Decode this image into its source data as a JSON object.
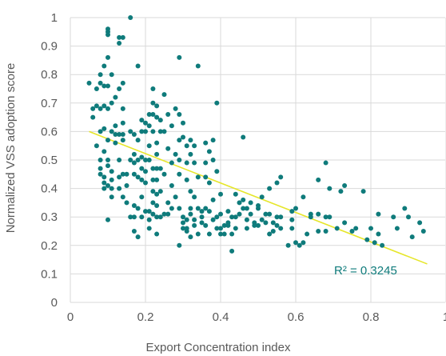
{
  "chart_data": {
    "type": "scatter",
    "xlabel": "Export Concentration index",
    "ylabel": "Normalized VSS adoption score",
    "xlim": [
      0,
      1
    ],
    "ylim": [
      0,
      1
    ],
    "xticks": [
      0,
      0.2,
      0.4,
      0.6,
      0.8,
      1
    ],
    "yticks": [
      0,
      0.1,
      0.2,
      0.3,
      0.4,
      0.5,
      0.6,
      0.7,
      0.8,
      0.9,
      1
    ],
    "xtick_labels": [
      "0",
      "0.2",
      "0.4",
      "0.6",
      "0.8",
      "1"
    ],
    "ytick_labels": [
      "0",
      "0.1",
      "0.2",
      "0.3",
      "0.4",
      "0.5",
      "0.6",
      "0.7",
      "0.8",
      "0.9",
      "1"
    ],
    "grid": "both",
    "marker_color": "#0f7b7b",
    "trendline": {
      "type": "linear",
      "x": [
        0.05,
        0.95
      ],
      "y": [
        0.6,
        0.135
      ],
      "color": "#e6e62a",
      "r2_label": "R² = 0.3245",
      "r2_color": "#0f7b7b"
    },
    "series": [
      {
        "points": [
          [
            0.05,
            0.77
          ],
          [
            0.06,
            0.68
          ],
          [
            0.06,
            0.65
          ],
          [
            0.07,
            0.55
          ],
          [
            0.07,
            0.69
          ],
          [
            0.07,
            0.75
          ],
          [
            0.08,
            0.8
          ],
          [
            0.08,
            0.77
          ],
          [
            0.08,
            0.68
          ],
          [
            0.08,
            0.6
          ],
          [
            0.08,
            0.5
          ],
          [
            0.08,
            0.47
          ],
          [
            0.08,
            0.45
          ],
          [
            0.09,
            0.83
          ],
          [
            0.09,
            0.76
          ],
          [
            0.09,
            0.69
          ],
          [
            0.09,
            0.61
          ],
          [
            0.09,
            0.53
          ],
          [
            0.09,
            0.44
          ],
          [
            0.09,
            0.42
          ],
          [
            0.09,
            0.4
          ],
          [
            0.1,
            0.96
          ],
          [
            0.1,
            0.95
          ],
          [
            0.1,
            0.94
          ],
          [
            0.1,
            0.86
          ],
          [
            0.1,
            0.76
          ],
          [
            0.1,
            0.68
          ],
          [
            0.1,
            0.57
          ],
          [
            0.1,
            0.5
          ],
          [
            0.1,
            0.48
          ],
          [
            0.1,
            0.41
          ],
          [
            0.1,
            0.29
          ],
          [
            0.11,
            0.8
          ],
          [
            0.11,
            0.7
          ],
          [
            0.11,
            0.6
          ],
          [
            0.11,
            0.46
          ],
          [
            0.11,
            0.43
          ],
          [
            0.11,
            0.4
          ],
          [
            0.11,
            0.37
          ],
          [
            0.12,
            0.72
          ],
          [
            0.12,
            0.62
          ],
          [
            0.12,
            0.59
          ],
          [
            0.12,
            0.56
          ],
          [
            0.13,
            0.93
          ],
          [
            0.13,
            0.91
          ],
          [
            0.13,
            0.75
          ],
          [
            0.13,
            0.59
          ],
          [
            0.13,
            0.5
          ],
          [
            0.13,
            0.44
          ],
          [
            0.13,
            0.4
          ],
          [
            0.14,
            0.93
          ],
          [
            0.14,
            0.77
          ],
          [
            0.14,
            0.68
          ],
          [
            0.14,
            0.63
          ],
          [
            0.14,
            0.59
          ],
          [
            0.14,
            0.57
          ],
          [
            0.14,
            0.45
          ],
          [
            0.14,
            0.37
          ],
          [
            0.15,
            0.45
          ],
          [
            0.15,
            0.41
          ],
          [
            0.15,
            0.35
          ],
          [
            0.16,
            1.0
          ],
          [
            0.16,
            0.6
          ],
          [
            0.16,
            0.5
          ],
          [
            0.16,
            0.3
          ],
          [
            0.17,
            0.59
          ],
          [
            0.17,
            0.52
          ],
          [
            0.17,
            0.49
          ],
          [
            0.17,
            0.45
          ],
          [
            0.17,
            0.34
          ],
          [
            0.17,
            0.3
          ],
          [
            0.17,
            0.25
          ],
          [
            0.18,
            0.83
          ],
          [
            0.18,
            0.57
          ],
          [
            0.18,
            0.5
          ],
          [
            0.18,
            0.44
          ],
          [
            0.18,
            0.33
          ],
          [
            0.18,
            0.23
          ],
          [
            0.19,
            0.64
          ],
          [
            0.19,
            0.6
          ],
          [
            0.19,
            0.51
          ],
          [
            0.19,
            0.47
          ],
          [
            0.19,
            0.43
          ],
          [
            0.19,
            0.37
          ],
          [
            0.19,
            0.3
          ],
          [
            0.2,
            0.63
          ],
          [
            0.2,
            0.6
          ],
          [
            0.2,
            0.5
          ],
          [
            0.2,
            0.46
          ],
          [
            0.2,
            0.42
          ],
          [
            0.2,
            0.32
          ],
          [
            0.21,
            0.66
          ],
          [
            0.21,
            0.62
          ],
          [
            0.21,
            0.55
          ],
          [
            0.21,
            0.5
          ],
          [
            0.21,
            0.32
          ],
          [
            0.21,
            0.29
          ],
          [
            0.21,
            0.26
          ],
          [
            0.22,
            0.75
          ],
          [
            0.22,
            0.7
          ],
          [
            0.22,
            0.66
          ],
          [
            0.22,
            0.6
          ],
          [
            0.22,
            0.47
          ],
          [
            0.22,
            0.43
          ],
          [
            0.22,
            0.39
          ],
          [
            0.22,
            0.35
          ],
          [
            0.22,
            0.31
          ],
          [
            0.23,
            0.69
          ],
          [
            0.23,
            0.65
          ],
          [
            0.23,
            0.56
          ],
          [
            0.23,
            0.52
          ],
          [
            0.23,
            0.47
          ],
          [
            0.23,
            0.43
          ],
          [
            0.23,
            0.38
          ],
          [
            0.23,
            0.34
          ],
          [
            0.23,
            0.3
          ],
          [
            0.23,
            0.24
          ],
          [
            0.24,
            0.64
          ],
          [
            0.24,
            0.6
          ],
          [
            0.24,
            0.47
          ],
          [
            0.24,
            0.39
          ],
          [
            0.24,
            0.3
          ],
          [
            0.25,
            0.73
          ],
          [
            0.25,
            0.6
          ],
          [
            0.25,
            0.45
          ],
          [
            0.25,
            0.31
          ],
          [
            0.26,
            0.66
          ],
          [
            0.26,
            0.54
          ],
          [
            0.26,
            0.35
          ],
          [
            0.26,
            0.31
          ],
          [
            0.27,
            0.62
          ],
          [
            0.27,
            0.49
          ],
          [
            0.27,
            0.41
          ],
          [
            0.27,
            0.33
          ],
          [
            0.28,
            0.68
          ],
          [
            0.28,
            0.52
          ],
          [
            0.28,
            0.37
          ],
          [
            0.29,
            0.86
          ],
          [
            0.29,
            0.66
          ],
          [
            0.29,
            0.57
          ],
          [
            0.29,
            0.5
          ],
          [
            0.29,
            0.45
          ],
          [
            0.29,
            0.33
          ],
          [
            0.29,
            0.2
          ],
          [
            0.3,
            0.63
          ],
          [
            0.3,
            0.58
          ],
          [
            0.3,
            0.3
          ],
          [
            0.3,
            0.28
          ],
          [
            0.3,
            0.26
          ],
          [
            0.31,
            0.55
          ],
          [
            0.31,
            0.49
          ],
          [
            0.31,
            0.43
          ],
          [
            0.31,
            0.29
          ],
          [
            0.31,
            0.26
          ],
          [
            0.31,
            0.25
          ],
          [
            0.32,
            0.57
          ],
          [
            0.32,
            0.52
          ],
          [
            0.32,
            0.39
          ],
          [
            0.32,
            0.33
          ],
          [
            0.32,
            0.31
          ],
          [
            0.32,
            0.23
          ],
          [
            0.33,
            0.55
          ],
          [
            0.33,
            0.49
          ],
          [
            0.33,
            0.37
          ],
          [
            0.33,
            0.29
          ],
          [
            0.33,
            0.27
          ],
          [
            0.34,
            0.83
          ],
          [
            0.34,
            0.44
          ],
          [
            0.34,
            0.33
          ],
          [
            0.34,
            0.24
          ],
          [
            0.35,
            0.32
          ],
          [
            0.35,
            0.3
          ],
          [
            0.35,
            0.28
          ],
          [
            0.36,
            0.56
          ],
          [
            0.36,
            0.49
          ],
          [
            0.36,
            0.44
          ],
          [
            0.36,
            0.33
          ],
          [
            0.36,
            0.27
          ],
          [
            0.37,
            0.53
          ],
          [
            0.37,
            0.42
          ],
          [
            0.37,
            0.32
          ],
          [
            0.37,
            0.24
          ],
          [
            0.38,
            0.57
          ],
          [
            0.38,
            0.5
          ],
          [
            0.38,
            0.36
          ],
          [
            0.38,
            0.29
          ],
          [
            0.39,
            0.7
          ],
          [
            0.39,
            0.46
          ],
          [
            0.39,
            0.3
          ],
          [
            0.39,
            0.26
          ],
          [
            0.4,
            0.38
          ],
          [
            0.4,
            0.31
          ],
          [
            0.4,
            0.26
          ],
          [
            0.4,
            0.24
          ],
          [
            0.41,
            0.27
          ],
          [
            0.41,
            0.24
          ],
          [
            0.42,
            0.32
          ],
          [
            0.42,
            0.28
          ],
          [
            0.42,
            0.27
          ],
          [
            0.43,
            0.3
          ],
          [
            0.43,
            0.24
          ],
          [
            0.43,
            0.18
          ],
          [
            0.44,
            0.38
          ],
          [
            0.44,
            0.3
          ],
          [
            0.44,
            0.26
          ],
          [
            0.45,
            0.35
          ],
          [
            0.45,
            0.31
          ],
          [
            0.46,
            0.58
          ],
          [
            0.46,
            0.36
          ],
          [
            0.46,
            0.33
          ],
          [
            0.47,
            0.33
          ],
          [
            0.47,
            0.29
          ],
          [
            0.47,
            0.26
          ],
          [
            0.48,
            0.35
          ],
          [
            0.48,
            0.31
          ],
          [
            0.49,
            0.28
          ],
          [
            0.49,
            0.27
          ],
          [
            0.5,
            0.34
          ],
          [
            0.5,
            0.33
          ],
          [
            0.5,
            0.27
          ],
          [
            0.51,
            0.37
          ],
          [
            0.51,
            0.29
          ],
          [
            0.52,
            0.31
          ],
          [
            0.52,
            0.28
          ],
          [
            0.53,
            0.4
          ],
          [
            0.53,
            0.31
          ],
          [
            0.53,
            0.24
          ],
          [
            0.54,
            0.28
          ],
          [
            0.54,
            0.25
          ],
          [
            0.55,
            0.42
          ],
          [
            0.55,
            0.3
          ],
          [
            0.55,
            0.27
          ],
          [
            0.56,
            0.44
          ],
          [
            0.56,
            0.3
          ],
          [
            0.56,
            0.26
          ],
          [
            0.58,
            0.2
          ],
          [
            0.59,
            0.32
          ],
          [
            0.59,
            0.29
          ],
          [
            0.59,
            0.26
          ],
          [
            0.6,
            0.33
          ],
          [
            0.6,
            0.21
          ],
          [
            0.61,
            0.2
          ],
          [
            0.62,
            0.21
          ],
          [
            0.62,
            0.37
          ],
          [
            0.63,
            0.24
          ],
          [
            0.64,
            0.31
          ],
          [
            0.64,
            0.3
          ],
          [
            0.66,
            0.43
          ],
          [
            0.66,
            0.31
          ],
          [
            0.66,
            0.25
          ],
          [
            0.68,
            0.49
          ],
          [
            0.68,
            0.3
          ],
          [
            0.68,
            0.25
          ],
          [
            0.69,
            0.4
          ],
          [
            0.69,
            0.3
          ],
          [
            0.71,
            0.26
          ],
          [
            0.72,
            0.39
          ],
          [
            0.73,
            0.41
          ],
          [
            0.73,
            0.28
          ],
          [
            0.75,
            0.25
          ],
          [
            0.76,
            0.26
          ],
          [
            0.78,
            0.39
          ],
          [
            0.79,
            0.22
          ],
          [
            0.8,
            0.26
          ],
          [
            0.81,
            0.21
          ],
          [
            0.82,
            0.31
          ],
          [
            0.82,
            0.24
          ],
          [
            0.83,
            0.2
          ],
          [
            0.86,
            0.3
          ],
          [
            0.87,
            0.26
          ],
          [
            0.89,
            0.33
          ],
          [
            0.9,
            0.3
          ],
          [
            0.91,
            0.23
          ],
          [
            0.93,
            0.28
          ],
          [
            0.94,
            0.25
          ]
        ]
      }
    ]
  }
}
